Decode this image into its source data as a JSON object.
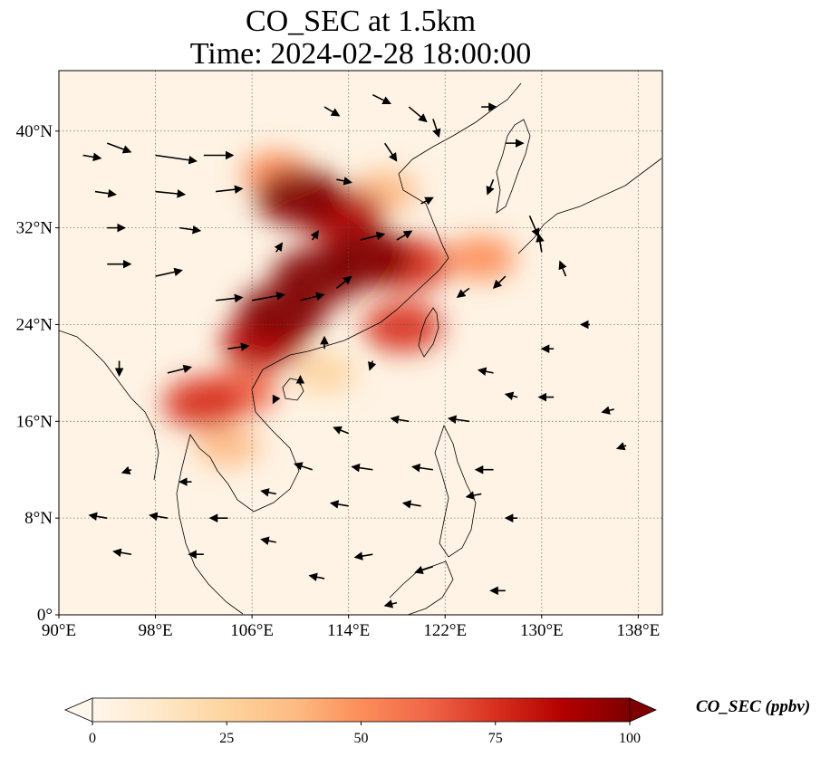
{
  "title_line1": "CO_SEC at 1.5km",
  "title_line2": "Time: 2024-02-28 18:00:00",
  "chart_data": {
    "type": "heatmap",
    "variable": "CO_SEC",
    "units": "ppbv",
    "colorbar_label": "CO_SEC (ppbv)",
    "xlim": [
      90,
      140
    ],
    "ylim": [
      0,
      45
    ],
    "x_ticks": [
      90,
      98,
      106,
      114,
      122,
      130,
      138
    ],
    "x_tick_labels": [
      "90°E",
      "98°E",
      "106°E",
      "114°E",
      "122°E",
      "130°E",
      "138°E"
    ],
    "y_ticks": [
      0,
      8,
      16,
      24,
      32,
      40
    ],
    "y_tick_labels": [
      "0°",
      "8°N",
      "16°N",
      "24°N",
      "32°N",
      "40°N"
    ],
    "grid": true,
    "colormap": "OrRd",
    "color_range": [
      0,
      100
    ],
    "colorbar_ticks": [
      0,
      25,
      50,
      75,
      100
    ],
    "colorbar_tick_labels": [
      "0",
      "25",
      "50",
      "75",
      "100"
    ],
    "colorbar_extend": "both",
    "colors": [
      "#fff7ec",
      "#fee8c8",
      "#fdd49e",
      "#fdbb84",
      "#fc8d59",
      "#ef6548",
      "#d7301f",
      "#b30000",
      "#7f0000"
    ],
    "plumes": [
      {
        "lon": 115.5,
        "lat": 29.5,
        "value": 100
      },
      {
        "lon": 111.5,
        "lat": 28.0,
        "value": 100
      },
      {
        "lon": 110.0,
        "lat": 34.5,
        "value": 95
      },
      {
        "lon": 113.5,
        "lat": 33.0,
        "value": 85
      },
      {
        "lon": 108.5,
        "lat": 25.0,
        "value": 95
      },
      {
        "lon": 119.0,
        "lat": 29.0,
        "value": 80
      },
      {
        "lon": 107.0,
        "lat": 22.5,
        "value": 85
      },
      {
        "lon": 102.0,
        "lat": 17.5,
        "value": 75
      },
      {
        "lon": 105.0,
        "lat": 18.5,
        "value": 60
      },
      {
        "lon": 118.5,
        "lat": 23.8,
        "value": 70
      },
      {
        "lon": 125.0,
        "lat": 29.5,
        "value": 45
      },
      {
        "lon": 104.0,
        "lat": 14.0,
        "value": 35
      },
      {
        "lon": 112.0,
        "lat": 20.0,
        "value": 30
      },
      {
        "lon": 108.0,
        "lat": 36.5,
        "value": 45
      },
      {
        "lon": 117.0,
        "lat": 35.0,
        "value": 40
      }
    ],
    "wind_vectors": [
      {
        "lon": 92,
        "lat": 38,
        "u": 6,
        "v": -1
      },
      {
        "lon": 94,
        "lat": 39,
        "u": 8,
        "v": -3
      },
      {
        "lon": 98,
        "lat": 38,
        "u": 14,
        "v": -2
      },
      {
        "lon": 102,
        "lat": 38,
        "u": 10,
        "v": 0
      },
      {
        "lon": 93,
        "lat": 35,
        "u": 7,
        "v": -1
      },
      {
        "lon": 98,
        "lat": 35,
        "u": 10,
        "v": -1
      },
      {
        "lon": 103,
        "lat": 35,
        "u": 9,
        "v": 1
      },
      {
        "lon": 94,
        "lat": 32,
        "u": 6,
        "v": 0
      },
      {
        "lon": 100,
        "lat": 32,
        "u": 7,
        "v": -1
      },
      {
        "lon": 94,
        "lat": 29,
        "u": 8,
        "v": 0
      },
      {
        "lon": 98,
        "lat": 28,
        "u": 9,
        "v": 2
      },
      {
        "lon": 103,
        "lat": 26,
        "u": 9,
        "v": 1
      },
      {
        "lon": 106,
        "lat": 26,
        "u": 11,
        "v": 2
      },
      {
        "lon": 104,
        "lat": 22,
        "u": 7,
        "v": 1
      },
      {
        "lon": 99,
        "lat": 20,
        "u": 8,
        "v": 2
      },
      {
        "lon": 95,
        "lat": 21,
        "u": 0,
        "v": -5
      },
      {
        "lon": 112,
        "lat": 42,
        "u": 5,
        "v": -3
      },
      {
        "lon": 116,
        "lat": 43,
        "u": 6,
        "v": -3
      },
      {
        "lon": 119,
        "lat": 42,
        "u": 6,
        "v": -5
      },
      {
        "lon": 117,
        "lat": 39,
        "u": 4,
        "v": -6
      },
      {
        "lon": 121,
        "lat": 41,
        "u": 2,
        "v": -6
      },
      {
        "lon": 125,
        "lat": 42,
        "u": 5,
        "v": 0
      },
      {
        "lon": 127,
        "lat": 39,
        "u": 6,
        "v": 0
      },
      {
        "lon": 126,
        "lat": 36,
        "u": -2,
        "v": -5
      },
      {
        "lon": 129,
        "lat": 33,
        "u": 3,
        "v": -7
      },
      {
        "lon": 130,
        "lat": 30,
        "u": -1,
        "v": 6
      },
      {
        "lon": 132,
        "lat": 28,
        "u": -2,
        "v": 5
      },
      {
        "lon": 127,
        "lat": 28,
        "u": -4,
        "v": -4
      },
      {
        "lon": 124,
        "lat": 27,
        "u": -4,
        "v": -3
      },
      {
        "lon": 134,
        "lat": 24,
        "u": -3,
        "v": 0
      },
      {
        "lon": 131,
        "lat": 22,
        "u": -4,
        "v": 0
      },
      {
        "lon": 126,
        "lat": 20,
        "u": -5,
        "v": 1
      },
      {
        "lon": 131,
        "lat": 18,
        "u": -5,
        "v": 0
      },
      {
        "lon": 136,
        "lat": 17,
        "u": -4,
        "v": -1
      },
      {
        "lon": 137,
        "lat": 14,
        "u": -3,
        "v": -1
      },
      {
        "lon": 128,
        "lat": 18,
        "u": -4,
        "v": 1
      },
      {
        "lon": 124,
        "lat": 16,
        "u": -7,
        "v": 1
      },
      {
        "lon": 119,
        "lat": 16,
        "u": -6,
        "v": 1
      },
      {
        "lon": 114,
        "lat": 15,
        "u": -5,
        "v": 2
      },
      {
        "lon": 116,
        "lat": 12,
        "u": -7,
        "v": 1
      },
      {
        "lon": 121,
        "lat": 12,
        "u": -7,
        "v": 1
      },
      {
        "lon": 126,
        "lat": 12,
        "u": -6,
        "v": 0
      },
      {
        "lon": 111,
        "lat": 12,
        "u": -6,
        "v": 2
      },
      {
        "lon": 108,
        "lat": 10,
        "u": -5,
        "v": 1
      },
      {
        "lon": 114,
        "lat": 9,
        "u": -6,
        "v": 1
      },
      {
        "lon": 120,
        "lat": 9,
        "u": -6,
        "v": 1
      },
      {
        "lon": 125,
        "lat": 10,
        "u": -5,
        "v": -1
      },
      {
        "lon": 128,
        "lat": 8,
        "u": -4,
        "v": 0
      },
      {
        "lon": 104,
        "lat": 8,
        "u": -6,
        "v": 0
      },
      {
        "lon": 99,
        "lat": 8,
        "u": -6,
        "v": 1
      },
      {
        "lon": 94,
        "lat": 8,
        "u": -6,
        "v": 1
      },
      {
        "lon": 96,
        "lat": 5,
        "u": -6,
        "v": 1
      },
      {
        "lon": 102,
        "lat": 5,
        "u": -5,
        "v": 0
      },
      {
        "lon": 108,
        "lat": 6,
        "u": -5,
        "v": 1
      },
      {
        "lon": 116,
        "lat": 5,
        "u": -6,
        "v": -1
      },
      {
        "lon": 121,
        "lat": 4,
        "u": -6,
        "v": -2
      },
      {
        "lon": 127,
        "lat": 2,
        "u": -5,
        "v": 0
      },
      {
        "lon": 112,
        "lat": 3,
        "u": -5,
        "v": 1
      },
      {
        "lon": 118,
        "lat": 1,
        "u": -4,
        "v": -1
      },
      {
        "lon": 96,
        "lat": 12,
        "u": -3,
        "v": -1
      },
      {
        "lon": 101,
        "lat": 11,
        "u": -4,
        "v": 0
      },
      {
        "lon": 110,
        "lat": 26,
        "u": 8,
        "v": 2
      },
      {
        "lon": 113,
        "lat": 27,
        "u": 5,
        "v": 4
      },
      {
        "lon": 115,
        "lat": 31,
        "u": 8,
        "v": 2
      },
      {
        "lon": 118,
        "lat": 31,
        "u": 5,
        "v": 3
      },
      {
        "lon": 120,
        "lat": 34,
        "u": 4,
        "v": 2
      },
      {
        "lon": 113,
        "lat": 36,
        "u": 5,
        "v": -1
      },
      {
        "lon": 111,
        "lat": 31,
        "u": 2,
        "v": 3
      },
      {
        "lon": 108,
        "lat": 30,
        "u": 2,
        "v": 3
      },
      {
        "lon": 112,
        "lat": 22,
        "u": 0,
        "v": 4
      },
      {
        "lon": 116,
        "lat": 21,
        "u": -1,
        "v": -3
      },
      {
        "lon": 110,
        "lat": 19,
        "u": 0,
        "v": 3
      },
      {
        "lon": 108,
        "lat": 18,
        "u": -1,
        "v": -2
      }
    ]
  }
}
